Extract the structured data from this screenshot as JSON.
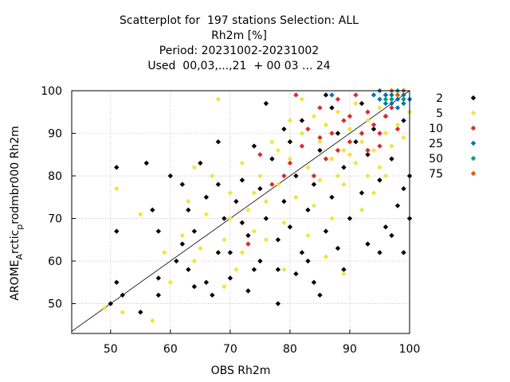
{
  "chart_data": {
    "type": "scatter",
    "title_lines": [
      "Scatterplot for  197 stations Selection: ALL",
      "Rh2m [%]",
      "Period: 20231002-20231002",
      "Used  00,03,...,21  + 00 03 ... 24"
    ],
    "xlabel": "OBS Rh2m",
    "ylabel_parts": [
      "AROME",
      "A",
      "rctic",
      "p",
      "rodmbr000 Rh2m"
    ],
    "xlim": [
      43.5,
      100
    ],
    "ylim": [
      43,
      100
    ],
    "x_ticks": [
      "50",
      "60",
      "70",
      "80",
      "90",
      "100"
    ],
    "y_ticks": [
      "50",
      "60",
      "70",
      "80",
      "90",
      "100"
    ],
    "x_tick_values": [
      50,
      60,
      70,
      80,
      90,
      100
    ],
    "y_tick_values": [
      50,
      60,
      70,
      80,
      90,
      100
    ],
    "grid": true,
    "diagonal_line": true,
    "legend_placement": "right",
    "series": [
      {
        "name": "2",
        "color": "#000000",
        "points": [
          [
            50,
            50
          ],
          [
            51,
            82
          ],
          [
            51,
            67
          ],
          [
            51,
            55
          ],
          [
            52,
            52
          ],
          [
            56,
            83
          ],
          [
            57,
            72
          ],
          [
            58,
            67
          ],
          [
            58,
            52
          ],
          [
            60,
            80
          ],
          [
            62,
            78
          ],
          [
            63,
            72
          ],
          [
            63,
            58
          ],
          [
            64,
            67
          ],
          [
            65,
            83
          ],
          [
            66,
            75
          ],
          [
            67,
            52
          ],
          [
            68,
            62
          ],
          [
            68,
            88
          ],
          [
            69,
            70
          ],
          [
            70,
            56
          ],
          [
            71,
            74
          ],
          [
            72,
            79
          ],
          [
            73,
            53
          ],
          [
            73,
            66
          ],
          [
            74,
            87
          ],
          [
            75,
            60
          ],
          [
            75,
            77
          ],
          [
            76,
            70
          ],
          [
            77,
            84
          ],
          [
            78,
            58
          ],
          [
            78,
            65
          ],
          [
            79,
            74
          ],
          [
            79,
            91
          ],
          [
            80,
            68
          ],
          [
            81,
            80
          ],
          [
            82,
            62
          ],
          [
            82,
            93
          ],
          [
            83,
            72
          ],
          [
            84,
            78
          ],
          [
            84,
            55
          ],
          [
            85,
            86
          ],
          [
            86,
            67
          ],
          [
            87,
            75
          ],
          [
            87,
            96
          ],
          [
            88,
            63
          ],
          [
            89,
            82
          ],
          [
            90,
            70
          ],
          [
            91,
            88
          ],
          [
            92,
            76
          ],
          [
            93,
            64
          ],
          [
            94,
            91
          ],
          [
            95,
            79
          ],
          [
            96,
            68
          ],
          [
            97,
            84
          ],
          [
            98,
            73
          ],
          [
            99,
            93
          ],
          [
            99,
            62
          ],
          [
            100,
            80
          ],
          [
            100,
            70
          ],
          [
            62,
            64
          ],
          [
            66,
            55
          ],
          [
            70,
            62
          ],
          [
            74,
            58
          ],
          [
            76,
            97
          ],
          [
            80,
            88
          ],
          [
            83,
            60
          ],
          [
            86,
            99
          ],
          [
            88,
            90
          ],
          [
            92,
            97
          ],
          [
            95,
            62
          ],
          [
            97,
            66
          ],
          [
            99,
            77
          ],
          [
            68,
            78
          ],
          [
            72,
            69
          ],
          [
            85,
            52
          ],
          [
            78,
            50
          ],
          [
            81,
            57
          ],
          [
            89,
            58
          ],
          [
            93,
            85
          ],
          [
            96,
            94
          ],
          [
            64,
            54
          ],
          [
            58,
            56
          ],
          [
            55,
            48
          ],
          [
            61,
            60
          ]
        ]
      },
      {
        "name": "5",
        "color": "#f0e442",
        "points": [
          [
            49,
            49
          ],
          [
            51,
            77
          ],
          [
            52,
            48
          ],
          [
            55,
            71
          ],
          [
            57,
            46
          ],
          [
            59,
            62
          ],
          [
            60,
            55
          ],
          [
            62,
            66
          ],
          [
            64,
            60
          ],
          [
            66,
            71
          ],
          [
            67,
            80
          ],
          [
            68,
            98
          ],
          [
            69,
            65
          ],
          [
            70,
            76
          ],
          [
            71,
            58
          ],
          [
            72,
            83
          ],
          [
            73,
            72
          ],
          [
            74,
            67
          ],
          [
            75,
            80
          ],
          [
            76,
            74
          ],
          [
            77,
            88
          ],
          [
            78,
            78
          ],
          [
            79,
            69
          ],
          [
            80,
            84
          ],
          [
            81,
            75
          ],
          [
            82,
            90
          ],
          [
            83,
            82
          ],
          [
            84,
            73
          ],
          [
            85,
            88
          ],
          [
            85,
            79
          ],
          [
            86,
            92
          ],
          [
            87,
            84
          ],
          [
            87,
            70
          ],
          [
            88,
            95
          ],
          [
            89,
            86
          ],
          [
            89,
            78
          ],
          [
            90,
            91
          ],
          [
            91,
            83
          ],
          [
            91,
            97
          ],
          [
            92,
            88
          ],
          [
            93,
            80
          ],
          [
            93,
            93
          ],
          [
            94,
            86
          ],
          [
            95,
            96
          ],
          [
            95,
            82
          ],
          [
            96,
            90
          ],
          [
            97,
            87
          ],
          [
            97,
            98
          ],
          [
            98,
            92
          ],
          [
            99,
            89
          ],
          [
            100,
            95
          ],
          [
            63,
            74
          ],
          [
            65,
            63
          ],
          [
            69,
            54
          ],
          [
            72,
            62
          ],
          [
            76,
            65
          ],
          [
            79,
            58
          ],
          [
            83,
            66
          ],
          [
            86,
            61
          ],
          [
            89,
            57
          ],
          [
            92,
            72
          ],
          [
            64,
            82
          ],
          [
            70,
            70
          ],
          [
            74,
            76
          ],
          [
            78,
            86
          ],
          [
            80,
            93
          ],
          [
            82,
            98
          ],
          [
            84,
            94
          ],
          [
            88,
            80
          ],
          [
            90,
            85
          ],
          [
            94,
            76
          ],
          [
            96,
            80
          ]
        ]
      },
      {
        "name": "10",
        "color": "#e0282e",
        "points": [
          [
            79,
            80
          ],
          [
            80,
            83
          ],
          [
            82,
            87
          ],
          [
            83,
            91
          ],
          [
            84,
            80
          ],
          [
            85,
            96
          ],
          [
            86,
            84
          ],
          [
            87,
            90
          ],
          [
            88,
            86
          ],
          [
            89,
            93
          ],
          [
            90,
            88
          ],
          [
            91,
            99
          ],
          [
            92,
            90
          ],
          [
            93,
            95
          ],
          [
            94,
            92
          ],
          [
            95,
            87
          ],
          [
            96,
            94
          ],
          [
            97,
            96
          ],
          [
            98,
            91
          ],
          [
            99,
            98
          ],
          [
            75,
            85
          ],
          [
            77,
            78
          ],
          [
            88,
            98
          ],
          [
            93,
            86
          ],
          [
            96,
            99
          ],
          [
            81,
            99
          ],
          [
            85,
            89
          ],
          [
            90,
            94
          ],
          [
            95,
            90
          ],
          [
            73,
            64
          ]
        ]
      },
      {
        "name": "25",
        "color": "#0072b2",
        "points": [
          [
            94,
            99
          ],
          [
            95,
            98
          ],
          [
            96,
            97
          ],
          [
            97,
            99
          ],
          [
            97,
            97
          ],
          [
            98,
            98
          ],
          [
            98,
            96
          ],
          [
            99,
            99
          ],
          [
            99,
            97
          ],
          [
            100,
            98
          ],
          [
            96,
            99
          ],
          [
            95,
            100
          ],
          [
            87,
            99
          ]
        ]
      },
      {
        "name": "50",
        "color": "#009e73",
        "points": [
          [
            97,
            98
          ],
          [
            98,
            100
          ],
          [
            99,
            98
          ],
          [
            96,
            98
          ]
        ]
      },
      {
        "name": "75",
        "color": "#d55e00",
        "points": [
          [
            98,
            99
          ],
          [
            99,
            100
          ],
          [
            97,
            100
          ]
        ]
      }
    ]
  }
}
